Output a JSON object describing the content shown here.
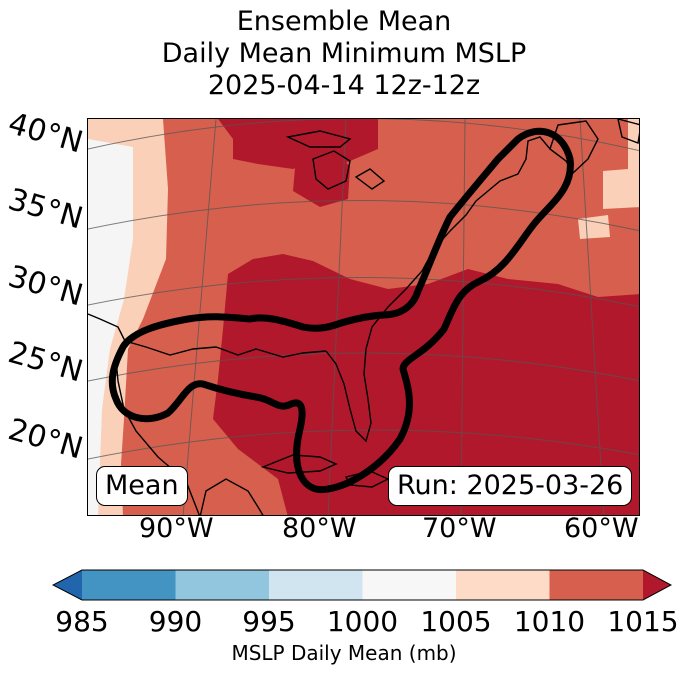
{
  "title": {
    "line1": "Ensemble Mean",
    "line2": "Daily Mean Minimum MSLP",
    "line3": "2025-04-14 12z-12z"
  },
  "map": {
    "lat_labels": [
      "40°N",
      "35°N",
      "30°N",
      "25°N",
      "20°N"
    ],
    "lon_labels": [
      "90°W",
      "80°W",
      "70°W",
      "60°W"
    ],
    "mean_box": "Mean",
    "run_box": "Run: 2025-03-26",
    "icons": [
      "coastline-shape",
      "ensemble-contour-shape"
    ]
  },
  "colorbar": {
    "ticks": [
      "985",
      "990",
      "995",
      "1000",
      "1005",
      "1010",
      "1015"
    ],
    "label": "MSLP Daily Mean (mb)",
    "colors": [
      "#2166ac",
      "#4393c3",
      "#92c5de",
      "#d1e5f0",
      "#f7f7f7",
      "#fddbc7",
      "#d6604d",
      "#b2182b"
    ]
  }
}
